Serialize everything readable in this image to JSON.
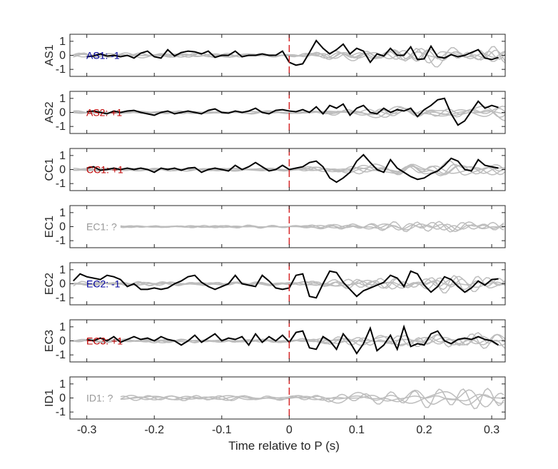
{
  "chart_data": {
    "type": "line",
    "xlabel": "Time relative to P (s)",
    "xlim": [
      -0.325,
      0.32
    ],
    "ylim": [
      -1.5,
      1.5
    ],
    "x_ticks": [
      -0.3,
      -0.2,
      -0.1,
      0,
      0.1,
      0.2,
      0.3
    ],
    "x_tick_labels": [
      "-0.3",
      "-0.2",
      "-0.1",
      "0",
      "0.1",
      "0.2",
      "0.3"
    ],
    "y_ticks": [
      1,
      0,
      -1
    ],
    "y_tick_labels": [
      "1",
      "0",
      "-1"
    ],
    "p_line_x": 0,
    "colors": {
      "positive": "#c00000",
      "negative": "#00009c",
      "unknown": "#999999",
      "trace": "#000000",
      "gray_traces": "#bdbdbd",
      "p_line": "#d62728"
    },
    "panels": [
      {
        "station": "AS1",
        "label": "AS1: -1",
        "polarity": "negative",
        "black_x": [
          -0.3,
          -0.29,
          -0.28,
          -0.27,
          -0.26,
          -0.25,
          -0.24,
          -0.23,
          -0.22,
          -0.21,
          -0.2,
          -0.19,
          -0.18,
          -0.17,
          -0.16,
          -0.15,
          -0.14,
          -0.13,
          -0.12,
          -0.11,
          -0.1,
          -0.09,
          -0.08,
          -0.07,
          -0.06,
          -0.05,
          -0.04,
          -0.03,
          -0.02,
          -0.01,
          0.0,
          0.01,
          0.02,
          0.03,
          0.04,
          0.05,
          0.06,
          0.07,
          0.08,
          0.09,
          0.1,
          0.11,
          0.12,
          0.13,
          0.14,
          0.15,
          0.16,
          0.17,
          0.18,
          0.19,
          0.2,
          0.21,
          0.22,
          0.23,
          0.24,
          0.25,
          0.26,
          0.27,
          0.28,
          0.29,
          0.3,
          0.31
        ],
        "black_y": [
          -0.1,
          -0.05,
          0.1,
          -0.05,
          0.0,
          -0.1,
          0.0,
          -0.2,
          0.15,
          0.3,
          -0.1,
          -0.2,
          0.4,
          -0.05,
          0.2,
          0.3,
          0.25,
          0.1,
          0.3,
          -0.15,
          0.0,
          0.0,
          0.3,
          -0.1,
          0.0,
          0.0,
          0.1,
          0.0,
          0.0,
          0.3,
          -0.5,
          -0.7,
          -0.6,
          0.2,
          1.05,
          0.5,
          0.1,
          0.4,
          0.8,
          0.1,
          0.5,
          0.3,
          -0.5,
          0.1,
          -0.05,
          0.5,
          0.0,
          0.0,
          0.6,
          -0.3,
          -0.25,
          0.65,
          -0.1,
          -0.2,
          0.05,
          -0.1,
          0.0,
          0.2,
          0.4,
          -0.2,
          -0.3,
          -0.15
        ],
        "gray_seeds": [
          1,
          2,
          3,
          4,
          5
        ],
        "gray_amp": 0.45
      },
      {
        "station": "AS2",
        "label": "AS2: +1",
        "polarity": "positive",
        "black_x": [
          -0.3,
          -0.29,
          -0.28,
          -0.27,
          -0.26,
          -0.25,
          -0.24,
          -0.23,
          -0.22,
          -0.21,
          -0.2,
          -0.19,
          -0.18,
          -0.17,
          -0.16,
          -0.15,
          -0.14,
          -0.13,
          -0.12,
          -0.11,
          -0.1,
          -0.09,
          -0.08,
          -0.07,
          -0.06,
          -0.05,
          -0.04,
          -0.03,
          -0.02,
          -0.01,
          0.0,
          0.01,
          0.02,
          0.03,
          0.04,
          0.05,
          0.06,
          0.07,
          0.08,
          0.09,
          0.1,
          0.11,
          0.12,
          0.13,
          0.14,
          0.15,
          0.16,
          0.17,
          0.18,
          0.19,
          0.2,
          0.21,
          0.22,
          0.23,
          0.24,
          0.25,
          0.26,
          0.27,
          0.28,
          0.29,
          0.3,
          0.31
        ],
        "black_y": [
          0.05,
          0.1,
          0.0,
          -0.1,
          0.1,
          0.0,
          0.1,
          0.15,
          0.0,
          -0.1,
          -0.2,
          0.0,
          0.1,
          -0.1,
          0.0,
          0.1,
          0.0,
          -0.1,
          0.15,
          0.25,
          0.0,
          -0.05,
          0.1,
          0.0,
          0.1,
          0.3,
          0.0,
          -0.1,
          0.15,
          0.2,
          0.1,
          0.05,
          0.2,
          0.0,
          0.4,
          -0.1,
          0.5,
          0.3,
          0.6,
          -0.2,
          0.3,
          0.5,
          0.0,
          -0.1,
          0.3,
          0.0,
          0.2,
          0.1,
          0.3,
          -0.3,
          0.2,
          0.5,
          0.9,
          1.0,
          -0.1,
          -0.9,
          -0.6,
          0.1,
          0.8,
          0.3,
          0.5,
          0.35
        ],
        "gray_seeds": [
          6,
          7,
          8,
          9,
          10
        ],
        "gray_amp": 0.35
      },
      {
        "station": "CC1",
        "label": "CC1: +1",
        "polarity": "positive",
        "black_x": [
          -0.3,
          -0.29,
          -0.28,
          -0.27,
          -0.26,
          -0.25,
          -0.24,
          -0.23,
          -0.22,
          -0.21,
          -0.2,
          -0.19,
          -0.18,
          -0.17,
          -0.16,
          -0.15,
          -0.14,
          -0.13,
          -0.12,
          -0.11,
          -0.1,
          -0.09,
          -0.08,
          -0.07,
          -0.06,
          -0.05,
          -0.04,
          -0.03,
          -0.02,
          -0.01,
          0.0,
          0.01,
          0.02,
          0.03,
          0.04,
          0.05,
          0.06,
          0.07,
          0.08,
          0.09,
          0.1,
          0.11,
          0.12,
          0.13,
          0.14,
          0.15,
          0.16,
          0.17,
          0.18,
          0.19,
          0.2,
          0.21,
          0.22,
          0.23,
          0.24,
          0.25,
          0.26,
          0.27,
          0.28,
          0.29,
          0.3,
          0.31
        ],
        "black_y": [
          0.1,
          0.2,
          -0.05,
          0.0,
          0.1,
          0.0,
          0.1,
          0.0,
          0.1,
          0.0,
          -0.2,
          0.1,
          0.0,
          0.1,
          -0.05,
          0.1,
          0.15,
          -0.2,
          0.0,
          0.1,
          0.0,
          -0.1,
          0.3,
          0.0,
          0.2,
          0.5,
          0.2,
          -0.1,
          0.0,
          0.3,
          0.0,
          0.1,
          0.2,
          0.5,
          0.6,
          0.2,
          -0.6,
          -0.9,
          -0.6,
          -0.2,
          0.6,
          1.05,
          0.5,
          0.0,
          -0.2,
          0.7,
          0.1,
          -0.2,
          -0.5,
          -0.7,
          -0.6,
          -0.3,
          -0.1,
          0.3,
          0.8,
          0.6,
          0.0,
          -0.1,
          0.7,
          0.3,
          0.2,
          0.1
        ],
        "gray_seeds": [
          11,
          12,
          13,
          14,
          15
        ],
        "gray_amp": 0.35
      },
      {
        "station": "EC1",
        "label": "EC1: ?",
        "polarity": "unknown",
        "black_x": [],
        "black_y": [],
        "gray_seeds": [
          16,
          17,
          18,
          19
        ],
        "gray_amp": 0.25
      },
      {
        "station": "EC2",
        "label": "EC2: -1",
        "polarity": "negative",
        "black_x": [
          -0.32,
          -0.31,
          -0.3,
          -0.29,
          -0.28,
          -0.27,
          -0.26,
          -0.25,
          -0.24,
          -0.23,
          -0.22,
          -0.21,
          -0.2,
          -0.19,
          -0.18,
          -0.17,
          -0.16,
          -0.15,
          -0.14,
          -0.13,
          -0.12,
          -0.11,
          -0.1,
          -0.09,
          -0.08,
          -0.07,
          -0.06,
          -0.05,
          -0.04,
          -0.03,
          -0.02,
          -0.01,
          0.0,
          0.01,
          0.02,
          0.03,
          0.04,
          0.05,
          0.06,
          0.07,
          0.08,
          0.09,
          0.1,
          0.11,
          0.12,
          0.13,
          0.14,
          0.15,
          0.16,
          0.17,
          0.18,
          0.19,
          0.2,
          0.21,
          0.22,
          0.23,
          0.24,
          0.25,
          0.26,
          0.27,
          0.28,
          0.29,
          0.3,
          0.31
        ],
        "black_y": [
          0.2,
          0.7,
          0.5,
          0.4,
          0.3,
          0.6,
          0.5,
          0.3,
          -0.2,
          0.0,
          -0.4,
          -0.4,
          -0.3,
          -0.4,
          -0.3,
          0.0,
          0.2,
          0.5,
          0.6,
          0.1,
          -0.2,
          -0.4,
          -0.2,
          0.0,
          0.6,
          0.0,
          -0.1,
          -0.2,
          0.6,
          0.2,
          -0.3,
          -0.4,
          -0.3,
          0.6,
          0.7,
          -0.9,
          -1.0,
          0.0,
          0.9,
          0.8,
          0.1,
          -0.4,
          -0.9,
          -0.5,
          -0.3,
          -0.1,
          0.1,
          0.6,
          0.4,
          -0.2,
          0.9,
          0.7,
          -0.1,
          -0.6,
          -0.2,
          0.5,
          0.3,
          -0.2,
          -0.6,
          -0.3,
          0.2,
          -0.1,
          0.3,
          0.35
        ],
        "gray_seeds": [
          20,
          21,
          22,
          23,
          24
        ],
        "gray_amp": 0.5
      },
      {
        "station": "EC3",
        "label": "EC3: +1",
        "polarity": "positive",
        "black_x": [
          -0.3,
          -0.29,
          -0.28,
          -0.27,
          -0.26,
          -0.25,
          -0.24,
          -0.23,
          -0.22,
          -0.21,
          -0.2,
          -0.19,
          -0.18,
          -0.17,
          -0.16,
          -0.15,
          -0.14,
          -0.13,
          -0.12,
          -0.11,
          -0.1,
          -0.09,
          -0.08,
          -0.07,
          -0.06,
          -0.05,
          -0.04,
          -0.03,
          -0.02,
          -0.01,
          0.0,
          0.01,
          0.02,
          0.03,
          0.04,
          0.05,
          0.06,
          0.07,
          0.08,
          0.09,
          0.1,
          0.11,
          0.12,
          0.13,
          0.14,
          0.15,
          0.16,
          0.17,
          0.18,
          0.19,
          0.2,
          0.21,
          0.22,
          0.23,
          0.24,
          0.25,
          0.26,
          0.27,
          0.28,
          0.29,
          0.3,
          0.31
        ],
        "black_y": [
          0.1,
          0.0,
          0.2,
          0.0,
          0.3,
          -0.1,
          0.1,
          0.3,
          0.1,
          0.2,
          0.0,
          0.3,
          0.1,
          0.0,
          -0.3,
          0.0,
          0.4,
          -0.1,
          0.2,
          0.5,
          0.0,
          0.2,
          0.1,
          0.3,
          -0.3,
          0.5,
          -0.1,
          0.3,
          0.0,
          0.4,
          -0.1,
          0.6,
          0.7,
          -0.5,
          -0.6,
          0.3,
          0.0,
          -0.6,
          0.5,
          -0.1,
          -0.9,
          -0.2,
          0.9,
          -0.7,
          -0.3,
          0.4,
          -0.6,
          1.0,
          -0.4,
          -0.2,
          -0.3,
          0.5,
          0.7,
          0.0,
          -0.2,
          0.1,
          0.2,
          0.1,
          0.3,
          0.1,
          0.0,
          -0.3
        ],
        "gray_seeds": [
          25,
          26,
          27,
          28,
          29
        ],
        "gray_amp": 0.4
      },
      {
        "station": "ID1",
        "label": "ID1: ?",
        "polarity": "unknown",
        "black_x": [],
        "black_y": [],
        "gray_seeds": [
          30,
          31,
          32,
          33
        ],
        "gray_amp": 0.45
      }
    ]
  }
}
